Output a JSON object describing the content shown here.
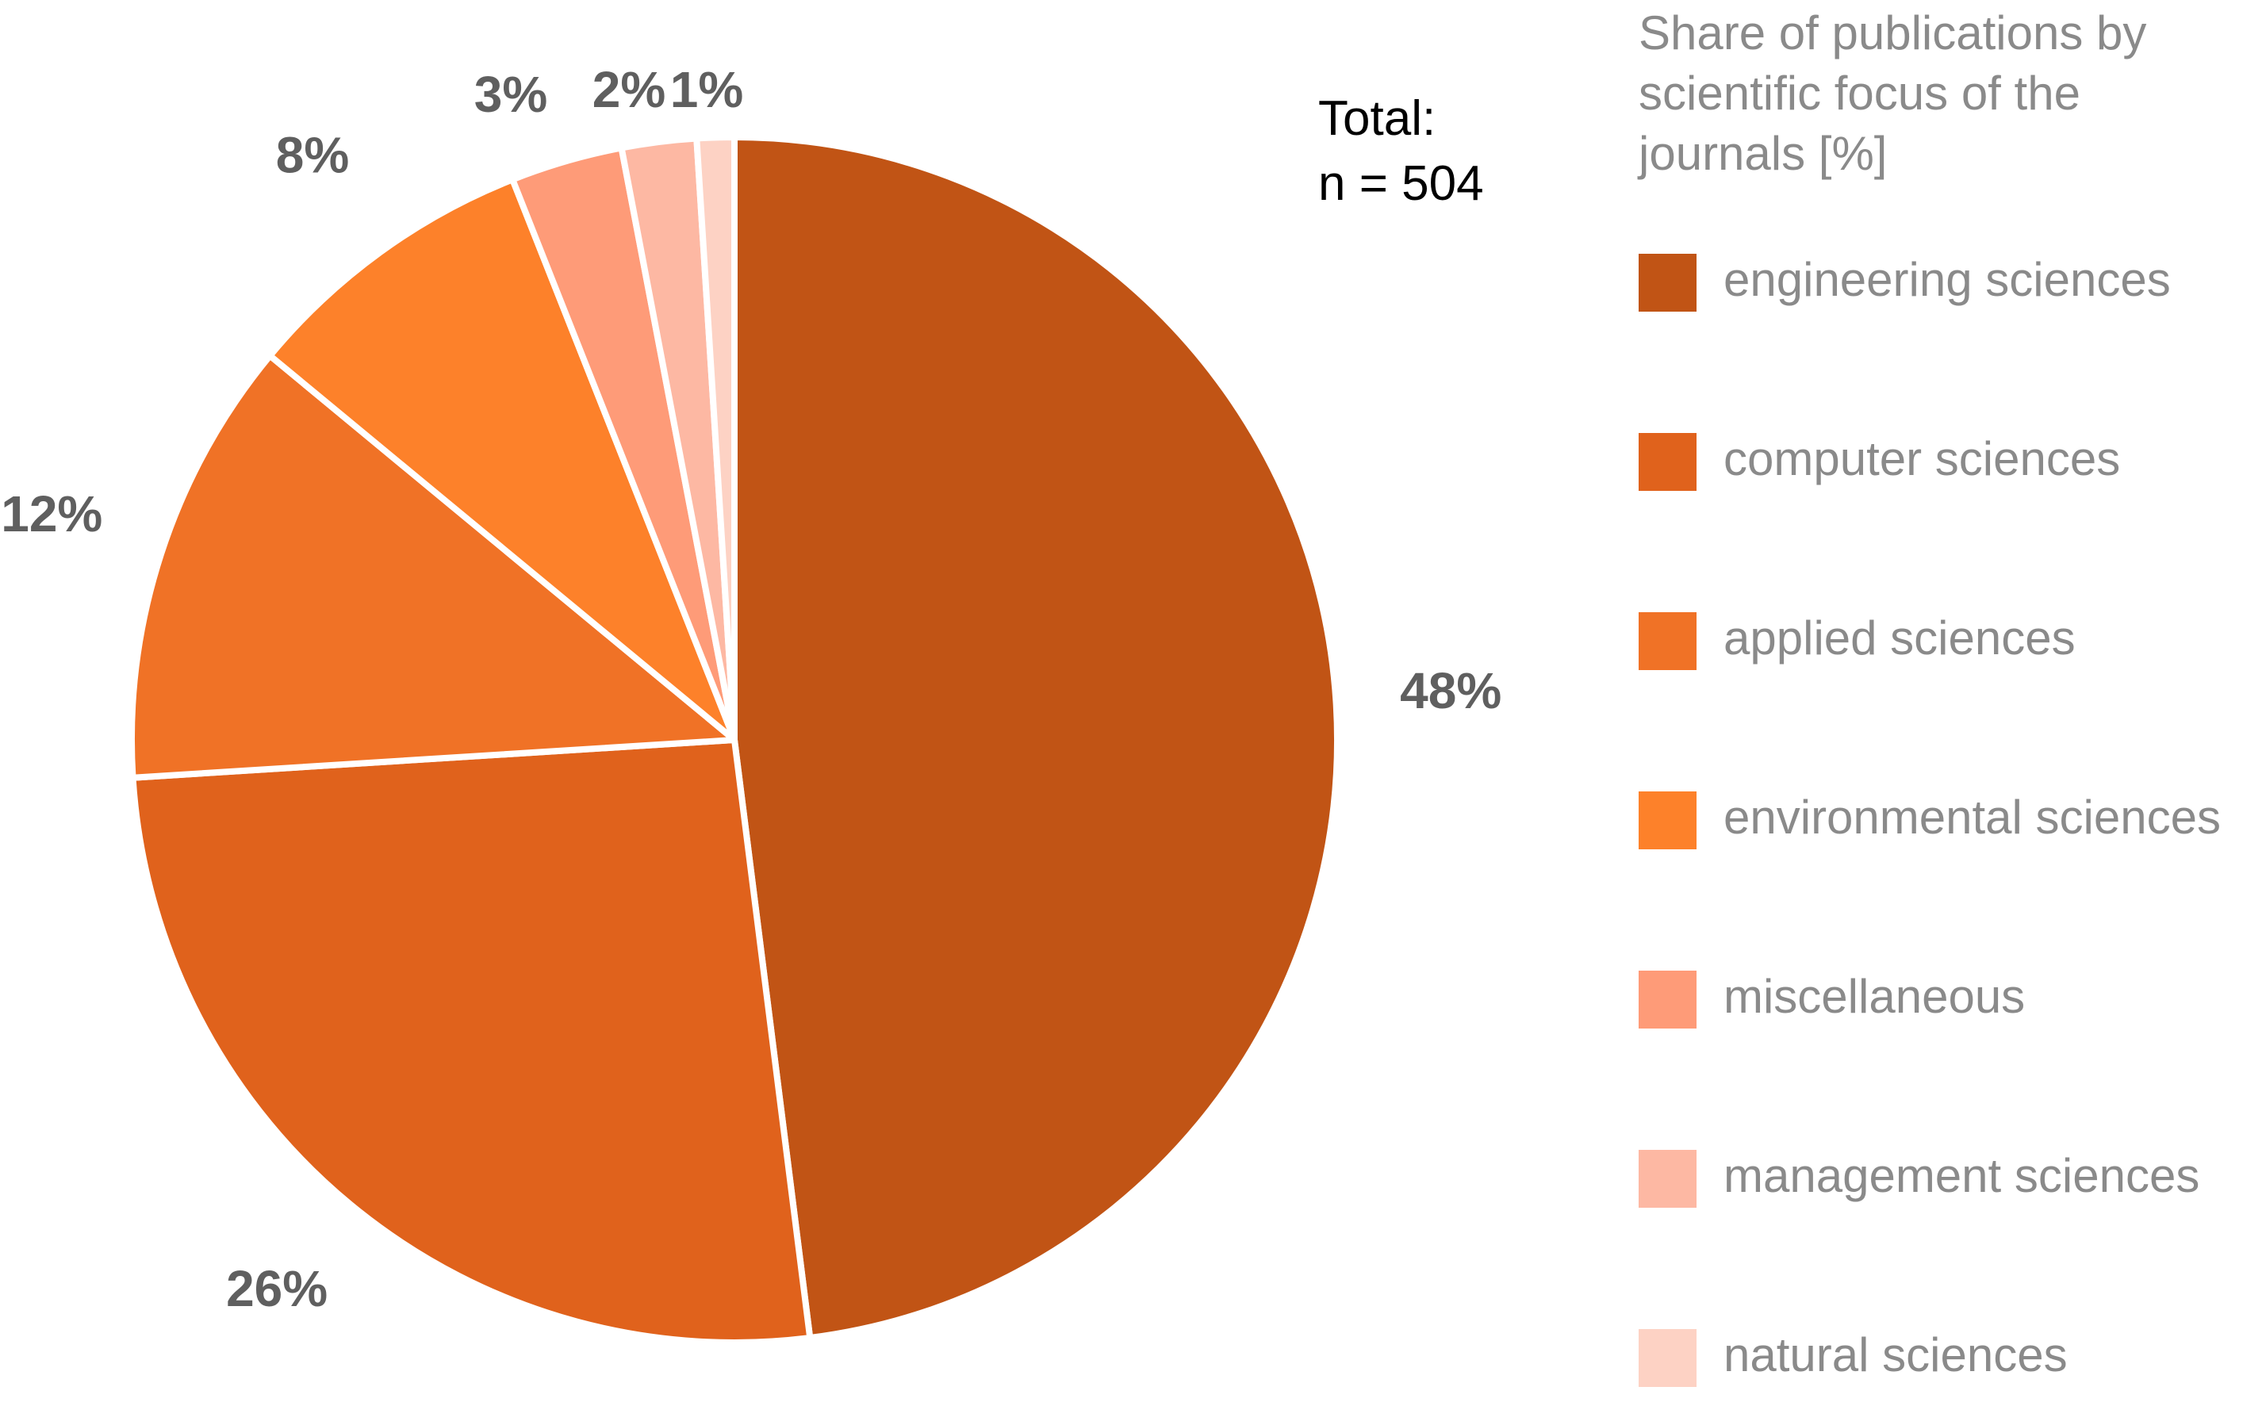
{
  "chart_data": {
    "type": "pie",
    "title": "Share of publications by scientific focus of the journals [%]",
    "title_lines": [
      "Share of publications by",
      "scientific focus of the",
      "journals [%]"
    ],
    "annotation": {
      "line1": "Total:",
      "line2": "n = 504"
    },
    "start_angle_deg": 0,
    "direction": "clockwise",
    "slices": [
      {
        "name": "engineering sciences",
        "value": 48,
        "label": "48%",
        "color": "#c15415"
      },
      {
        "name": "computer sciences",
        "value": 26,
        "label": "26%",
        "color": "#e0621c"
      },
      {
        "name": "applied sciences",
        "value": 12,
        "label": "12%",
        "color": "#f07226"
      },
      {
        "name": "environmental sciences",
        "value": 8,
        "label": "8%",
        "color": "#fd812a"
      },
      {
        "name": "miscellaneous",
        "value": 3,
        "label": "3%",
        "color": "#fe9b78"
      },
      {
        "name": "management sciences",
        "value": 2,
        "label": "2%",
        "color": "#fdb8a3"
      },
      {
        "name": "natural sciences",
        "value": 1,
        "label": "1%",
        "color": "#fdd2c4"
      }
    ],
    "legend_position": "right"
  }
}
